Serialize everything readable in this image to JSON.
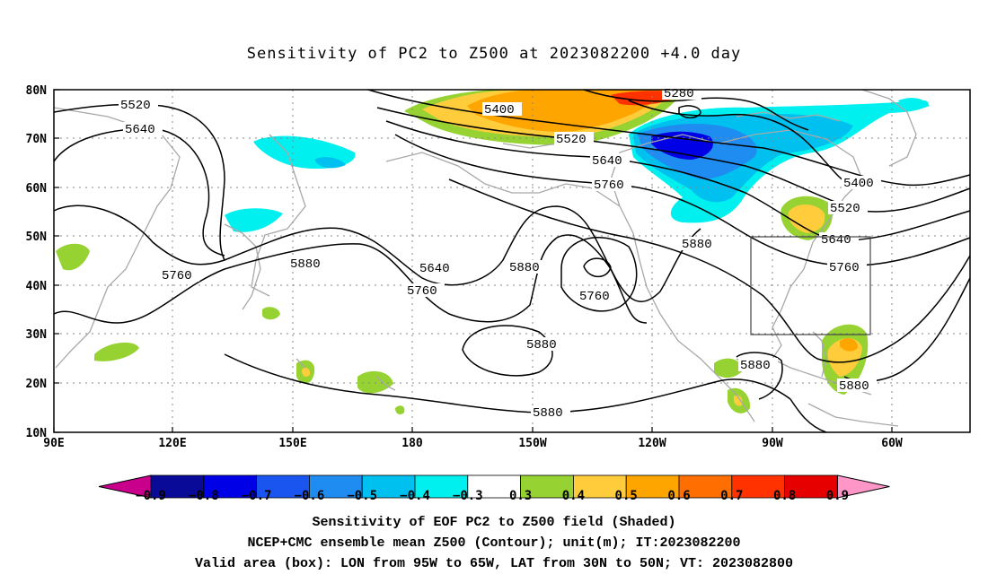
{
  "title": "Sensitivity of PC2 to Z500 at 2023082200 +4.0 day",
  "lat_ticks": [
    "80N",
    "70N",
    "60N",
    "50N",
    "40N",
    "30N",
    "20N",
    "10N"
  ],
  "lon_ticks": [
    "90E",
    "120E",
    "150E",
    "180",
    "150W",
    "120W",
    "90W",
    "60W"
  ],
  "contour_labels": [
    "5520",
    "5640",
    "5400",
    "5520",
    "5640",
    "5760",
    "5280",
    "5400",
    "5520",
    "5640",
    "5760",
    "5880",
    "5640",
    "5760",
    "5880",
    "5760",
    "5880",
    "5880",
    "5880",
    "5880"
  ],
  "colorbar": {
    "labels": [
      "−0.9",
      "−0.8",
      "−0.7",
      "−0.6",
      "−0.5",
      "−0.4",
      "−0.3",
      "0.3",
      "0.4",
      "0.5",
      "0.6",
      "0.7",
      "0.8",
      "0.9"
    ],
    "colors": [
      "#0a0a98",
      "#0000e6",
      "#1a55f0",
      "#1e8cf0",
      "#00c0f0",
      "#00f0f0",
      "#ffffff",
      "#96d232",
      "#ffcd3c",
      "#ffa500",
      "#ff6e00",
      "#ff3200",
      "#e60000"
    ],
    "low_extend": "#c8008c",
    "high_extend": "#ff96c8"
  },
  "captions": {
    "line1": "Sensitivity of EOF PC2 to Z500 field (Shaded)",
    "line2": "NCEP+CMC ensemble mean Z500 (Contour); unit(m); IT:2023082200",
    "line3": "Valid area (box): LON from 95W to 65W, LAT from 30N to 50N; VT: 2023082800"
  }
}
